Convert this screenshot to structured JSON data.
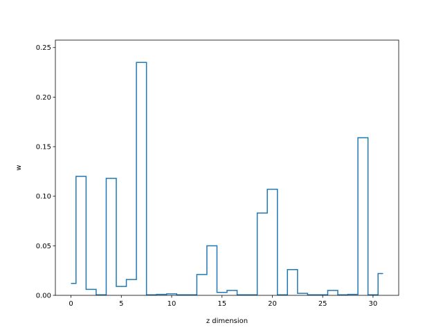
{
  "chart_data": {
    "type": "step",
    "xlabel": "z dimension",
    "ylabel": "w",
    "xlim": [
      -1.55,
      32.55
    ],
    "ylim": [
      0,
      0.2575
    ],
    "xticks": [
      0,
      5,
      10,
      15,
      20,
      25,
      30
    ],
    "yticks": [
      0.0,
      0.05,
      0.1,
      0.15,
      0.2,
      0.25
    ],
    "ytick_labels": [
      "0.00",
      "0.05",
      "0.10",
      "0.15",
      "0.20",
      "0.25"
    ],
    "grid": false,
    "line_color": "#1f77b4",
    "series": [
      {
        "x": [
          0,
          1,
          2,
          3,
          4,
          5,
          6,
          7,
          8,
          9,
          10,
          11,
          12,
          13,
          14,
          15,
          16,
          17,
          18,
          19,
          20,
          21,
          22,
          23,
          24,
          25,
          26,
          27,
          28,
          29,
          30,
          31
        ],
        "values": [
          0.012,
          0.12,
          0.006,
          0.0005,
          0.118,
          0.009,
          0.016,
          0.235,
          0.0005,
          0.001,
          0.0015,
          0.0005,
          0.0005,
          0.021,
          0.05,
          0.003,
          0.005,
          0.0005,
          0.0005,
          0.083,
          0.107,
          0.0005,
          0.026,
          0.002,
          0.0005,
          0.0005,
          0.005,
          0.0005,
          0.001,
          0.159,
          0.0005,
          0.022
        ]
      }
    ]
  }
}
